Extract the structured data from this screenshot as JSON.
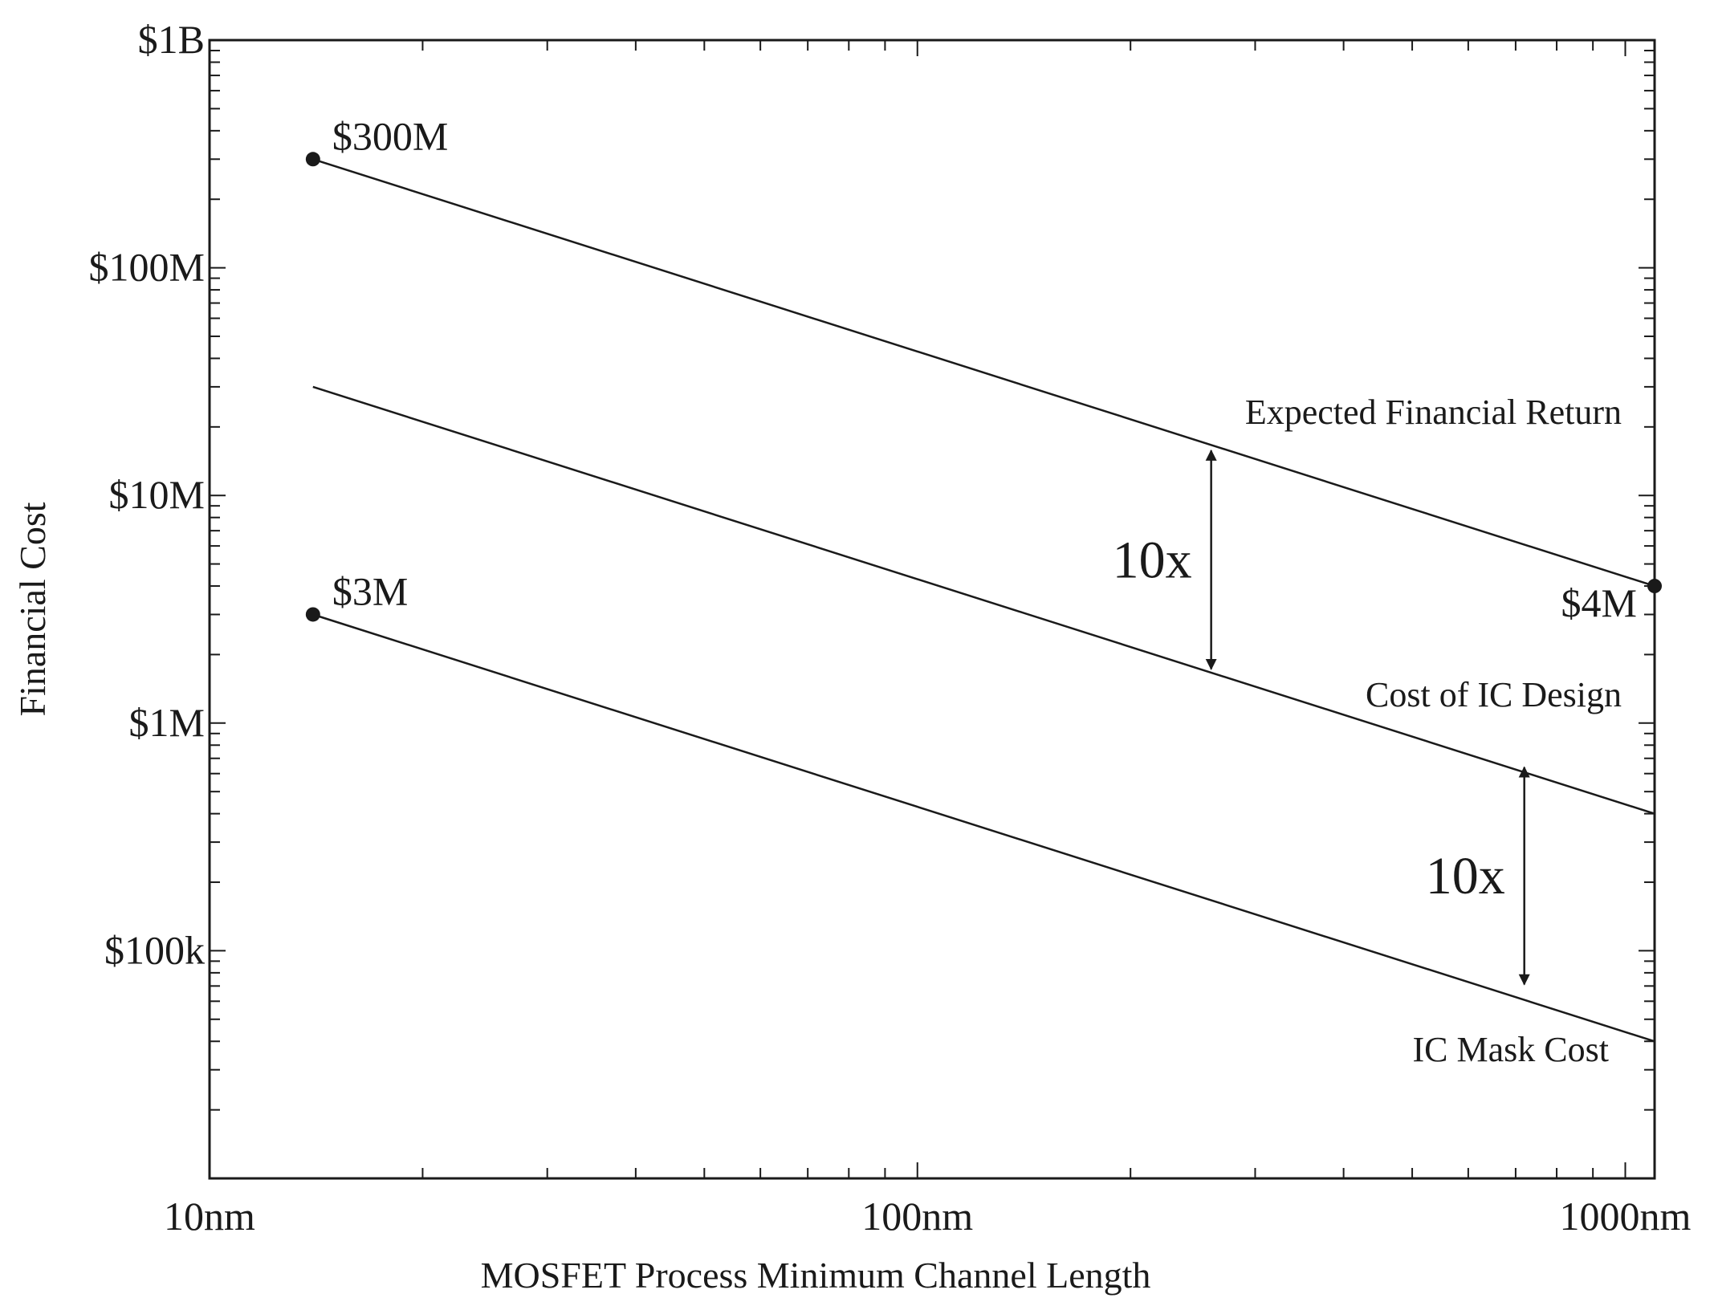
{
  "chart_data": {
    "type": "line",
    "title": "",
    "xlabel": "MOSFET Process Minimum Channel Length",
    "ylabel": "Financial Cost",
    "x_scale": "log",
    "y_scale": "log",
    "xlim": [
      10,
      1100
    ],
    "ylim": [
      10000,
      1000000000
    ],
    "grid": false,
    "x_ticks": [
      {
        "value": 10,
        "label": "10nm"
      },
      {
        "value": 100,
        "label": "100nm"
      },
      {
        "value": 1000,
        "label": "1000nm"
      }
    ],
    "y_ticks": [
      {
        "value": 1000000000,
        "label": "$1B"
      },
      {
        "value": 100000000,
        "label": "$100M"
      },
      {
        "value": 10000000,
        "label": "$10M"
      },
      {
        "value": 1000000,
        "label": "$1M"
      },
      {
        "value": 100000,
        "label": "$100k"
      }
    ],
    "series": [
      {
        "name": "Expected Financial Return",
        "x": [
          14,
          1100
        ],
        "y": [
          300000000,
          4000000
        ]
      },
      {
        "name": "Cost of IC Design",
        "x": [
          14,
          1100
        ],
        "y": [
          30000000,
          400000
        ]
      },
      {
        "name": "IC Mask Cost",
        "x": [
          14,
          1100
        ],
        "y": [
          3000000,
          40000
        ]
      }
    ],
    "point_labels": [
      {
        "text": "$300M",
        "x": 14,
        "y": 300000000
      },
      {
        "text": "$3M",
        "x": 14,
        "y": 3000000
      },
      {
        "text": "$4M",
        "x": 1100,
        "y": 4000000
      }
    ],
    "annotations": [
      {
        "text": "10x",
        "x": 260,
        "y_from": 1700000,
        "y_to": 16000000
      },
      {
        "text": "10x",
        "x": 720,
        "y_from": 70000,
        "y_to": 650000
      }
    ]
  }
}
